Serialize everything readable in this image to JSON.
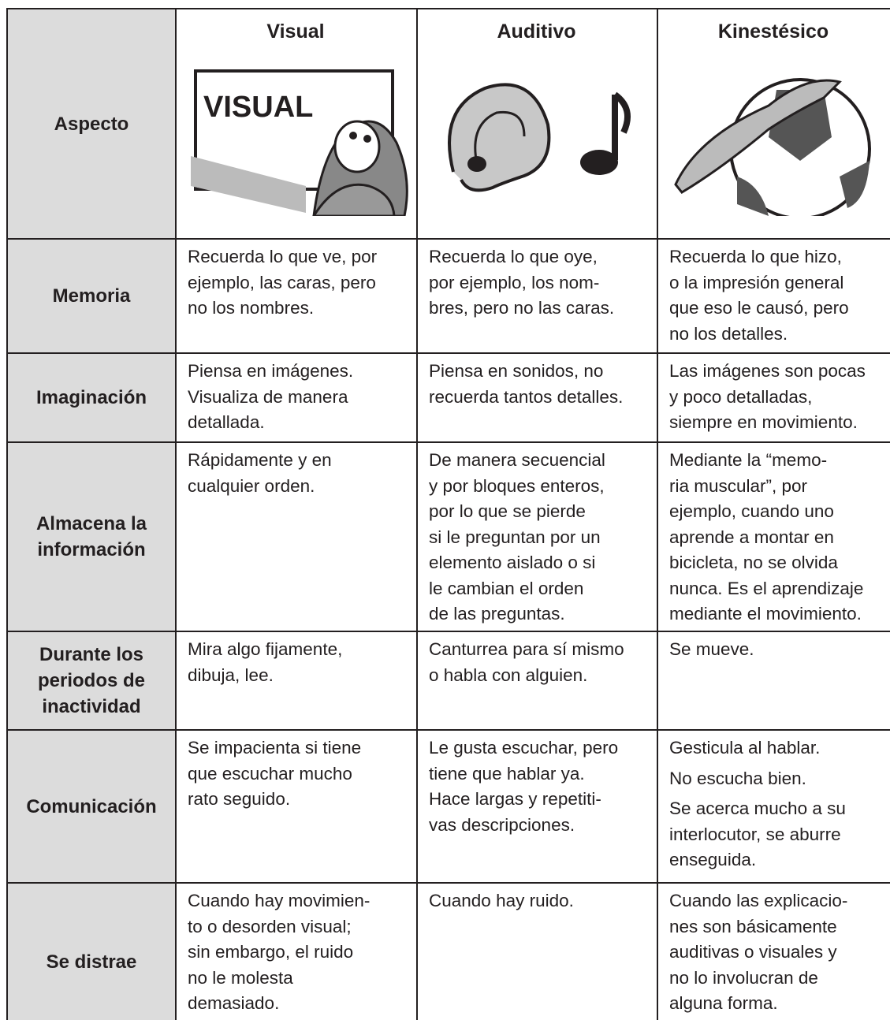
{
  "header": {
    "aspect": "Aspecto",
    "columns": [
      "Visual",
      "Auditivo",
      "Kinestésico"
    ],
    "illustration_text": "VISUAL"
  },
  "rows": [
    {
      "label": [
        "Memoria"
      ],
      "cells": [
        [
          [
            "Recuerda lo que ve, por",
            "ejemplo, las caras, pero",
            "no los nombres."
          ]
        ],
        [
          [
            "Recuerda lo que oye,",
            "por ejemplo, los nom-",
            "bres, pero no las caras."
          ]
        ],
        [
          [
            "Recuerda lo que hizo,",
            "o la impresión general",
            "que eso le causó, pero",
            "no los detalles."
          ]
        ]
      ]
    },
    {
      "label": [
        "Imaginación"
      ],
      "cells": [
        [
          [
            "Piensa en imágenes.",
            "Visualiza de manera",
            "detallada."
          ]
        ],
        [
          [
            "Piensa en sonidos, no",
            "recuerda tantos detalles."
          ]
        ],
        [
          [
            "Las imágenes son pocas",
            "y poco detalladas,",
            "siempre en movimiento."
          ]
        ]
      ]
    },
    {
      "label": [
        "Almacena la",
        "información"
      ],
      "cells": [
        [
          [
            "Rápidamente y en",
            "cualquier orden."
          ]
        ],
        [
          [
            "De manera secuencial",
            "y por bloques enteros,",
            "por lo que se pierde",
            "si le preguntan por un",
            "elemento aislado o si",
            "le cambian el orden",
            "de las preguntas."
          ]
        ],
        [
          [
            "Mediante la “memo-",
            "ria muscular”, por",
            "ejemplo,  cuando uno",
            "aprende a montar en",
            "bicicleta, no se olvida",
            "nunca. Es el aprendizaje",
            "mediante el movimiento."
          ]
        ]
      ]
    },
    {
      "label": [
        "Durante los",
        "periodos de",
        "inactividad"
      ],
      "cells": [
        [
          [
            "Mira algo fijamente,",
            "dibuja, lee."
          ]
        ],
        [
          [
            "Canturrea para sí mismo",
            "o habla con alguien."
          ]
        ],
        [
          [
            "Se mueve."
          ]
        ]
      ]
    },
    {
      "label": [
        "Comunicación"
      ],
      "cells": [
        [
          [
            "Se impacienta si tiene",
            "que escuchar mucho",
            "rato seguido."
          ]
        ],
        [
          [
            "Le gusta escuchar, pero",
            "tiene que hablar ya.",
            "Hace largas y repetiti-",
            "vas descripciones."
          ]
        ],
        [
          [
            "Gesticula al hablar."
          ],
          [
            "No escucha bien."
          ],
          [
            "Se acerca mucho a su",
            "interlocutor, se aburre",
            "enseguida."
          ]
        ]
      ]
    },
    {
      "label": [
        "Se distrae"
      ],
      "cells": [
        [
          [
            "Cuando hay movimien-",
            "to o desorden visual;",
            "sin embargo, el ruido",
            "no le molesta",
            "demasiado."
          ]
        ],
        [
          [
            "Cuando hay ruido."
          ]
        ],
        [
          [
            "Cuando las explicacio-",
            "nes son básicamente",
            "auditivas o visuales y",
            "no lo involucran de",
            "alguna forma."
          ]
        ]
      ]
    }
  ]
}
